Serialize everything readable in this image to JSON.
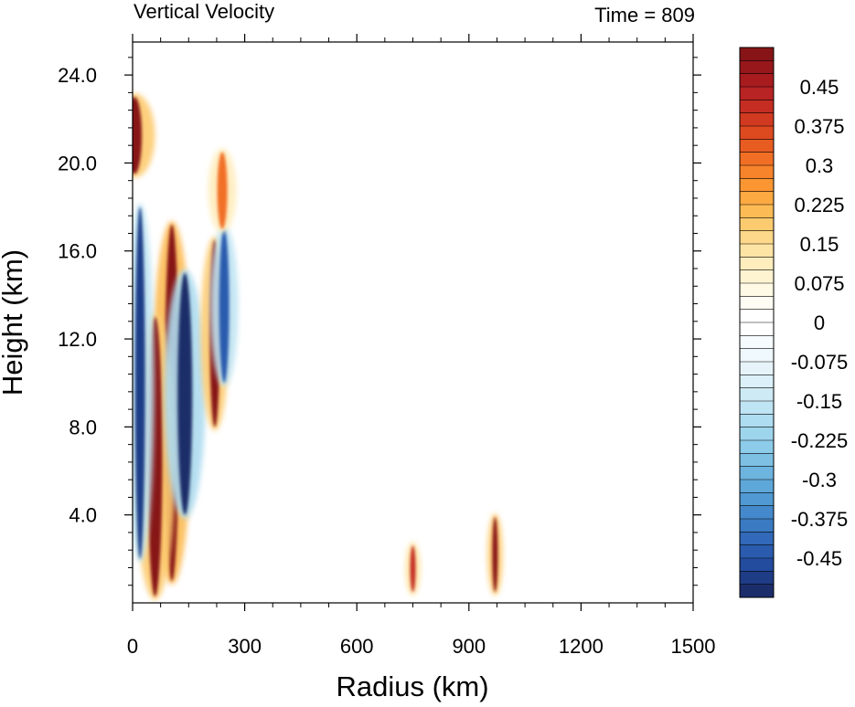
{
  "chart_data": {
    "type": "heatmap",
    "title": "Vertical Velocity",
    "right_title": "Time = 809",
    "xlabel": "Radius (km)",
    "ylabel": "Height (km)",
    "xlim": [
      0,
      1500
    ],
    "ylim": [
      0,
      25.5
    ],
    "x_ticks": [
      0,
      300,
      600,
      900,
      1200,
      1500
    ],
    "y_ticks": [
      4.0,
      8.0,
      12.0,
      16.0,
      20.0,
      24.0
    ],
    "x_tick_labels": [
      "0",
      "300",
      "600",
      "900",
      "1200",
      "1500"
    ],
    "y_tick_labels": [
      "4.0",
      "8.0",
      "12.0",
      "16.0",
      "20.0",
      "24.0"
    ],
    "colorbar": {
      "levels": [
        -0.525,
        -0.5,
        -0.475,
        -0.45,
        -0.425,
        -0.4,
        -0.375,
        -0.35,
        -0.325,
        -0.3,
        -0.275,
        -0.25,
        -0.225,
        -0.2,
        -0.175,
        -0.15,
        -0.125,
        -0.1,
        -0.075,
        -0.05,
        -0.025,
        0,
        0.025,
        0.05,
        0.075,
        0.1,
        0.125,
        0.15,
        0.175,
        0.2,
        0.225,
        0.25,
        0.275,
        0.3,
        0.325,
        0.35,
        0.375,
        0.4,
        0.425,
        0.45,
        0.475,
        0.5,
        0.525
      ],
      "tick_labels": [
        "0.45",
        "0.375",
        "0.3",
        "0.225",
        "0.15",
        "0.075",
        "0",
        "-0.075",
        "-0.15",
        "-0.225",
        "-0.3",
        "-0.375",
        "-0.45"
      ],
      "tick_values": [
        0.45,
        0.375,
        0.3,
        0.225,
        0.15,
        0.075,
        0,
        -0.075,
        -0.15,
        -0.225,
        -0.3,
        -0.375,
        -0.45
      ],
      "colors_bottom_to_top": [
        "#1c2d6b",
        "#1f3c87",
        "#234b9e",
        "#2a5bae",
        "#3269b8",
        "#3a7ac2",
        "#4489cb",
        "#5099d2",
        "#5ea7d9",
        "#6db4df",
        "#7dc0e4",
        "#8ccbe9",
        "#9dd5ed",
        "#aedcf0",
        "#bfe4f3",
        "#cdeaf5",
        "#dbf0f8",
        "#e6f4fa",
        "#eff8fc",
        "#f6fbfe",
        "#ffffff",
        "#ffffff",
        "#fffdf3",
        "#fffae5",
        "#fff4d2",
        "#ffedbd",
        "#fee4a4",
        "#fdd88a",
        "#fdcb6f",
        "#fcbb55",
        "#fca942",
        "#fb9633",
        "#f7832b",
        "#f16f25",
        "#e85c22",
        "#dd4a20",
        "#d13a20",
        "#c52d22",
        "#b82323",
        "#a81c1f",
        "#97171b",
        "#871517"
      ]
    },
    "features": [
      {
        "type": "updraft",
        "x": 105,
        "y_range": [
          1.0,
          17.2
        ],
        "peak": 0.6
      },
      {
        "type": "updraft",
        "x": 60,
        "y_range": [
          0.3,
          13.0
        ],
        "peak": 0.55
      },
      {
        "type": "downdraft",
        "x": 140,
        "y_range": [
          4.0,
          15.0
        ],
        "peak": -0.55
      },
      {
        "type": "downdraft",
        "x": 20,
        "y_range": [
          2.0,
          18.0
        ],
        "peak": -0.5
      },
      {
        "type": "updraft",
        "x": 5,
        "y_range": [
          19.5,
          23.0
        ],
        "peak": 0.55
      },
      {
        "type": "updraft",
        "x": 220,
        "y_range": [
          8.0,
          16.5
        ],
        "peak": 0.5
      },
      {
        "type": "downdraft",
        "x": 245,
        "y_range": [
          10.0,
          17.0
        ],
        "peak": -0.45
      },
      {
        "type": "updraft",
        "x": 240,
        "y_range": [
          17.0,
          20.5
        ],
        "peak": 0.3
      },
      {
        "type": "updraft",
        "x": 750,
        "y_range": [
          0.5,
          2.6
        ],
        "peak": 0.4
      },
      {
        "type": "updraft",
        "x": 970,
        "y_range": [
          0.5,
          3.9
        ],
        "peak": 0.55
      }
    ]
  }
}
